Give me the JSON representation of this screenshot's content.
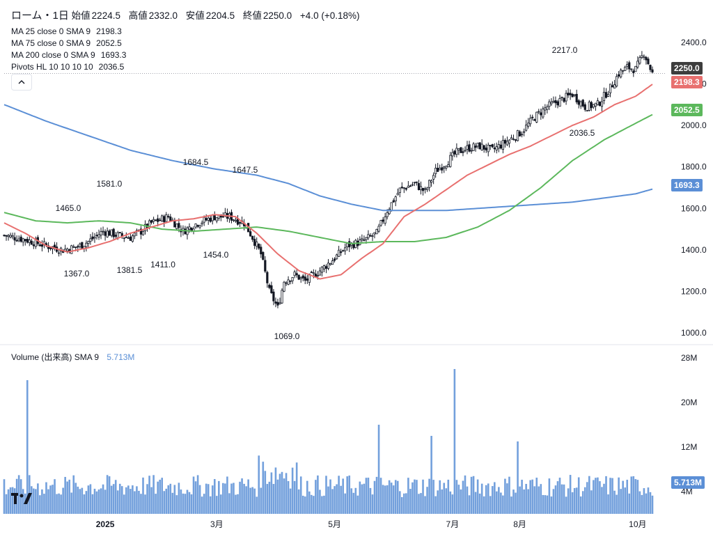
{
  "header": {
    "symbol": "ローム・1日",
    "open_label": "始値",
    "open": "2224.5",
    "high_label": "高値",
    "high": "2332.0",
    "low_label": "安値",
    "low": "2204.5",
    "close_label": "終値",
    "close": "2250.0",
    "change": "+4.0 (+0.18%)"
  },
  "indicators": {
    "ma25": {
      "label": "MA 25 close 0 SMA 9",
      "value": "2198.3",
      "color": "#e8706f"
    },
    "ma75": {
      "label": "MA 75 close 0 SMA 9",
      "value": "2052.5",
      "color": "#5cb85c"
    },
    "ma200": {
      "label": "MA 200 close 0 SMA 9",
      "value": "1693.3",
      "color": "#5b8fd6"
    },
    "pivots": {
      "label": "Pivots HL 10 10 10 10",
      "value": "2036.5"
    }
  },
  "collapse_icon": "chevron-up-icon",
  "volume_panel": {
    "label": "Volume (出来高)",
    "sma_label": "SMA 9",
    "value": "5.713M",
    "color": "#5b8fd6"
  },
  "price_tags": {
    "last": {
      "value": "2250.0",
      "color": "#3d3d3d"
    },
    "ma25": {
      "value": "2198.3",
      "color": "#e8706f"
    },
    "ma75": {
      "value": "2052.5",
      "color": "#5cb85c"
    },
    "ma200": {
      "value": "1693.3",
      "color": "#5b8fd6"
    },
    "volume": {
      "value": "5.713M",
      "color": "#5b8fd6"
    }
  },
  "chart_data": {
    "type": "candlestick",
    "y_axis": {
      "ticks": [
        "1000.0",
        "1200.0",
        "1400.0",
        "1600.0",
        "1800.0",
        "2000.0",
        "2200.0",
        "2400.0"
      ],
      "range": [
        960,
        2470
      ]
    },
    "volume_axis": {
      "ticks": [
        "4M",
        "12M",
        "20M",
        "28M"
      ],
      "range": [
        0,
        28.5
      ]
    },
    "x_axis": {
      "labels": [
        "2025",
        "3月",
        "5月",
        "7月",
        "8月",
        "10月"
      ]
    },
    "pivots": [
      {
        "label": "1367.0",
        "type": "low"
      },
      {
        "label": "1465.0",
        "type": "high"
      },
      {
        "label": "1581.0",
        "type": "high"
      },
      {
        "label": "1381.5",
        "type": "low"
      },
      {
        "label": "1411.0",
        "type": "low"
      },
      {
        "label": "1684.5",
        "type": "high"
      },
      {
        "label": "1454.0",
        "type": "low"
      },
      {
        "label": "1647.5",
        "type": "high"
      },
      {
        "label": "1069.0",
        "type": "low"
      },
      {
        "label": "2217.0",
        "type": "high"
      },
      {
        "label": "2036.5",
        "type": "low"
      }
    ],
    "close_anchors": [
      [
        0,
        1470
      ],
      [
        10,
        1450
      ],
      [
        20,
        1420
      ],
      [
        28,
        1400
      ],
      [
        35,
        1415
      ],
      [
        40,
        1440
      ],
      [
        47,
        1490
      ],
      [
        54,
        1470
      ],
      [
        60,
        1460
      ],
      [
        65,
        1490
      ],
      [
        70,
        1530
      ],
      [
        78,
        1560
      ],
      [
        85,
        1490
      ],
      [
        92,
        1530
      ],
      [
        100,
        1560
      ],
      [
        107,
        1560
      ],
      [
        114,
        1530
      ],
      [
        118,
        1460
      ],
      [
        122,
        1380
      ],
      [
        126,
        1200
      ],
      [
        130,
        1120
      ],
      [
        133,
        1250
      ],
      [
        138,
        1280
      ],
      [
        143,
        1250
      ],
      [
        150,
        1300
      ],
      [
        157,
        1360
      ],
      [
        163,
        1420
      ],
      [
        170,
        1440
      ],
      [
        177,
        1480
      ],
      [
        182,
        1590
      ],
      [
        188,
        1690
      ],
      [
        195,
        1720
      ],
      [
        200,
        1680
      ],
      [
        205,
        1780
      ],
      [
        210,
        1820
      ],
      [
        215,
        1870
      ],
      [
        220,
        1890
      ],
      [
        226,
        1900
      ],
      [
        232,
        1880
      ],
      [
        240,
        1930
      ],
      [
        246,
        1970
      ],
      [
        252,
        2040
      ],
      [
        258,
        2090
      ],
      [
        264,
        2120
      ],
      [
        270,
        2150
      ],
      [
        276,
        2090
      ],
      [
        282,
        2100
      ],
      [
        288,
        2180
      ],
      [
        292,
        2250
      ],
      [
        296,
        2280
      ],
      [
        300,
        2270
      ],
      [
        304,
        2350
      ],
      [
        308,
        2250
      ]
    ],
    "ma25_anchors": [
      [
        0,
        1530
      ],
      [
        10,
        1480
      ],
      [
        20,
        1420
      ],
      [
        30,
        1390
      ],
      [
        40,
        1410
      ],
      [
        50,
        1440
      ],
      [
        60,
        1480
      ],
      [
        70,
        1510
      ],
      [
        80,
        1540
      ],
      [
        90,
        1550
      ],
      [
        100,
        1570
      ],
      [
        110,
        1560
      ],
      [
        120,
        1480
      ],
      [
        130,
        1380
      ],
      [
        140,
        1300
      ],
      [
        150,
        1260
      ],
      [
        160,
        1280
      ],
      [
        170,
        1360
      ],
      [
        180,
        1430
      ],
      [
        190,
        1560
      ],
      [
        200,
        1620
      ],
      [
        210,
        1690
      ],
      [
        220,
        1760
      ],
      [
        230,
        1810
      ],
      [
        240,
        1860
      ],
      [
        250,
        1900
      ],
      [
        260,
        1950
      ],
      [
        270,
        2000
      ],
      [
        280,
        2040
      ],
      [
        290,
        2100
      ],
      [
        300,
        2140
      ],
      [
        308,
        2198
      ]
    ],
    "ma75_anchors": [
      [
        0,
        1580
      ],
      [
        15,
        1540
      ],
      [
        30,
        1530
      ],
      [
        45,
        1540
      ],
      [
        60,
        1530
      ],
      [
        75,
        1500
      ],
      [
        90,
        1490
      ],
      [
        105,
        1500
      ],
      [
        120,
        1510
      ],
      [
        135,
        1490
      ],
      [
        150,
        1460
      ],
      [
        165,
        1430
      ],
      [
        180,
        1440
      ],
      [
        195,
        1440
      ],
      [
        210,
        1460
      ],
      [
        225,
        1510
      ],
      [
        240,
        1590
      ],
      [
        255,
        1700
      ],
      [
        270,
        1830
      ],
      [
        285,
        1930
      ],
      [
        300,
        2010
      ],
      [
        308,
        2052
      ]
    ],
    "ma200_anchors": [
      [
        0,
        2100
      ],
      [
        20,
        2020
      ],
      [
        40,
        1950
      ],
      [
        60,
        1880
      ],
      [
        80,
        1830
      ],
      [
        100,
        1790
      ],
      [
        120,
        1760
      ],
      [
        135,
        1720
      ],
      [
        150,
        1660
      ],
      [
        165,
        1620
      ],
      [
        180,
        1590
      ],
      [
        195,
        1590
      ],
      [
        210,
        1590
      ],
      [
        225,
        1600
      ],
      [
        240,
        1610
      ],
      [
        255,
        1620
      ],
      [
        270,
        1630
      ],
      [
        285,
        1650
      ],
      [
        300,
        1670
      ],
      [
        308,
        1693
      ]
    ],
    "volume_mean_millions": 5.0,
    "volume_spikes_millions": [
      [
        11,
        24
      ],
      [
        178,
        16
      ],
      [
        203,
        14
      ],
      [
        214,
        26
      ],
      [
        244,
        13
      ]
    ]
  }
}
